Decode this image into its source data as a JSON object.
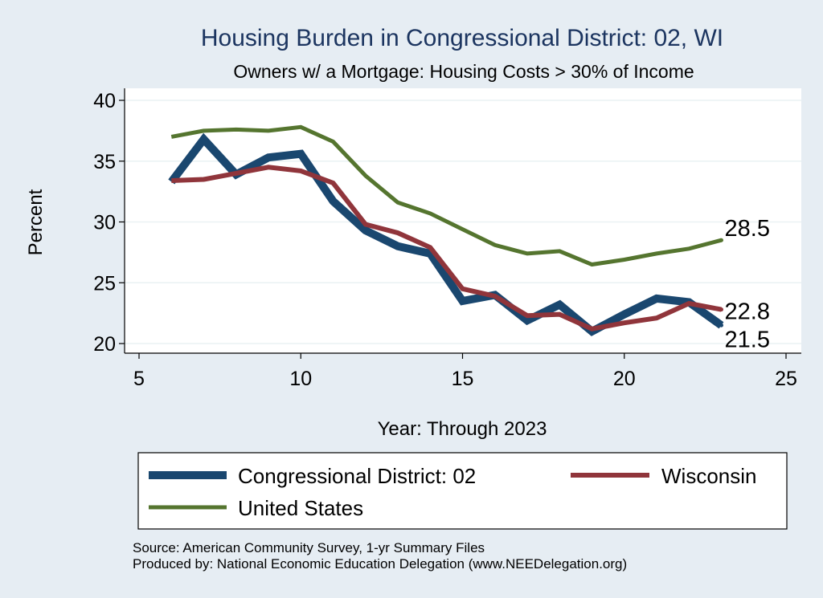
{
  "chart_data": {
    "type": "line",
    "title": "Housing Burden in Congressional District:  02, WI",
    "subtitle": "Owners w/ a Mortgage: Housing Costs > 30% of Income",
    "xlabel": "Year: Through 2023",
    "ylabel": "Percent",
    "xlim": [
      5,
      25
    ],
    "ylim": [
      20,
      40
    ],
    "xticks": [
      5,
      10,
      15,
      20,
      25
    ],
    "yticks": [
      20,
      25,
      30,
      35,
      40
    ],
    "grid": true,
    "legend_position": "bottom",
    "series": [
      {
        "name": "Congressional District:  02",
        "color": "#1a476f",
        "x": [
          6,
          7,
          8,
          9,
          10,
          11,
          12,
          13,
          14,
          15,
          16,
          17,
          18,
          19,
          20,
          21,
          22,
          23
        ],
        "values": [
          33.3,
          36.8,
          33.9,
          35.3,
          35.6,
          31.7,
          29.3,
          28.0,
          27.4,
          23.5,
          24.0,
          21.9,
          23.2,
          21.0,
          22.4,
          23.7,
          23.4,
          21.5
        ],
        "end_label": "21.5"
      },
      {
        "name": "Wisconsin",
        "color": "#90353b",
        "x": [
          6,
          7,
          8,
          9,
          10,
          11,
          12,
          13,
          14,
          15,
          16,
          17,
          18,
          19,
          20,
          21,
          22,
          23
        ],
        "values": [
          33.4,
          33.5,
          34.0,
          34.5,
          34.2,
          33.2,
          29.8,
          29.1,
          27.9,
          24.5,
          23.9,
          22.3,
          22.4,
          21.2,
          21.7,
          22.1,
          23.3,
          22.8
        ],
        "end_label": "22.8"
      },
      {
        "name": "United States",
        "color": "#55752f",
        "x": [
          6,
          7,
          8,
          9,
          10,
          11,
          12,
          13,
          14,
          15,
          16,
          17,
          18,
          19,
          20,
          21,
          22,
          23
        ],
        "values": [
          37.0,
          37.5,
          37.6,
          37.5,
          37.8,
          36.6,
          33.8,
          31.6,
          30.7,
          29.4,
          28.1,
          27.4,
          27.6,
          26.5,
          26.9,
          27.4,
          27.8,
          28.5
        ],
        "end_label": "28.5"
      }
    ]
  },
  "footer": {
    "source": "Source: American Community Survey, 1-yr Summary Files",
    "produced_by": "Produced by: National Economic Education Delegation (www.NEEDelegation.org)"
  }
}
